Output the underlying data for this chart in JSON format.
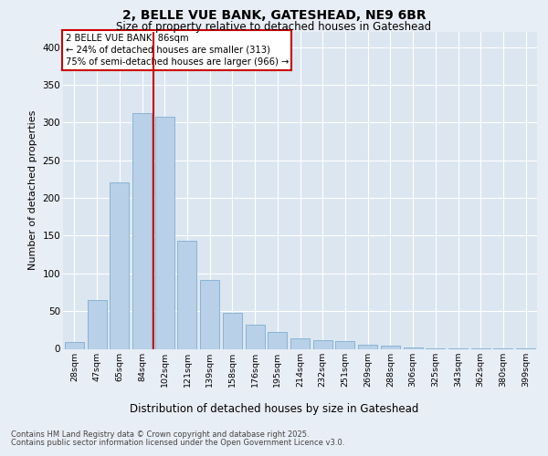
{
  "title1": "2, BELLE VUE BANK, GATESHEAD, NE9 6BR",
  "title2": "Size of property relative to detached houses in Gateshead",
  "xlabel": "Distribution of detached houses by size in Gateshead",
  "ylabel": "Number of detached properties",
  "categories": [
    "28sqm",
    "47sqm",
    "65sqm",
    "84sqm",
    "102sqm",
    "121sqm",
    "139sqm",
    "158sqm",
    "176sqm",
    "195sqm",
    "214sqm",
    "232sqm",
    "251sqm",
    "269sqm",
    "288sqm",
    "306sqm",
    "325sqm",
    "343sqm",
    "362sqm",
    "380sqm",
    "399sqm"
  ],
  "bar_heights": [
    9,
    65,
    220,
    312,
    308,
    143,
    91,
    48,
    32,
    22,
    14,
    11,
    10,
    5,
    4,
    2,
    1,
    1,
    1,
    1,
    1
  ],
  "bar_color": "#b8d0e8",
  "bar_edge_color": "#8ab4d4",
  "vline_position": 3.5,
  "vline_color": "#cc0000",
  "annotation_text": "2 BELLE VUE BANK: 86sqm\n← 24% of detached houses are smaller (313)\n75% of semi-detached houses are larger (966) →",
  "annotation_box_color": "#ffffff",
  "annotation_box_edge": "#cc0000",
  "background_color": "#e8eef5",
  "plot_bg_color": "#dce6f0",
  "footer1": "Contains HM Land Registry data © Crown copyright and database right 2025.",
  "footer2": "Contains public sector information licensed under the Open Government Licence v3.0.",
  "ylim": [
    0,
    420
  ],
  "yticks": [
    0,
    50,
    100,
    150,
    200,
    250,
    300,
    350,
    400
  ]
}
